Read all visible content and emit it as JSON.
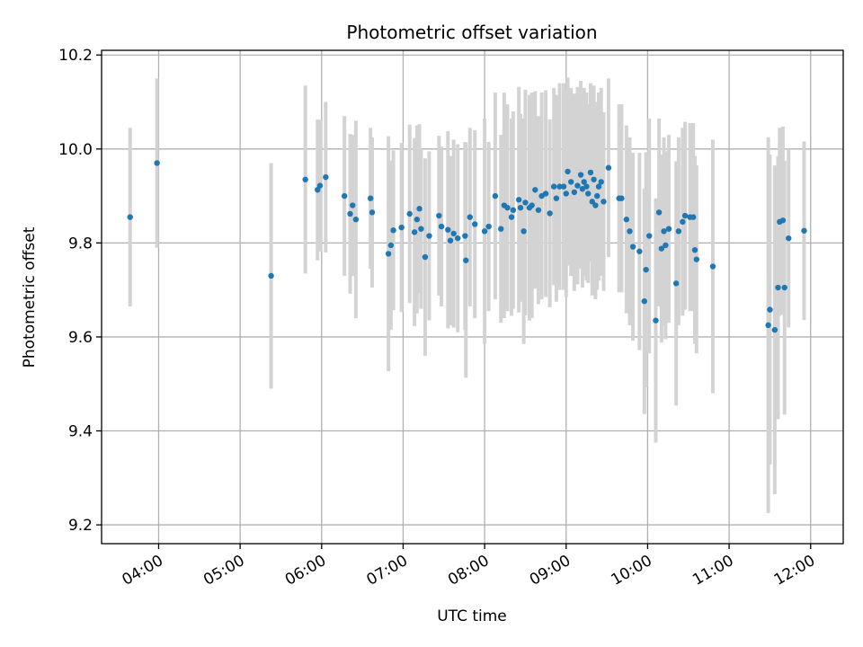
{
  "chart_data": {
    "type": "scatter",
    "title": "Photometric offset variation",
    "xlabel": "UTC time",
    "ylabel": "Photometric offset",
    "x_unit": "hours UTC",
    "xlim": [
      3.3,
      12.4
    ],
    "ylim": [
      9.16,
      10.21
    ],
    "grid": true,
    "x_ticks": [
      {
        "value": 4.0,
        "label": "04:00"
      },
      {
        "value": 5.0,
        "label": "05:00"
      },
      {
        "value": 6.0,
        "label": "06:00"
      },
      {
        "value": 7.0,
        "label": "07:00"
      },
      {
        "value": 8.0,
        "label": "08:00"
      },
      {
        "value": 9.0,
        "label": "09:00"
      },
      {
        "value": 10.0,
        "label": "10:00"
      },
      {
        "value": 11.0,
        "label": "11:00"
      },
      {
        "value": 12.0,
        "label": "12:00"
      }
    ],
    "y_ticks": [
      {
        "value": 9.2,
        "label": "9.2"
      },
      {
        "value": 9.4,
        "label": "9.4"
      },
      {
        "value": 9.6,
        "label": "9.6"
      },
      {
        "value": 9.8,
        "label": "9.8"
      },
      {
        "value": 10.0,
        "label": "10.0"
      },
      {
        "value": 10.2,
        "label": "10.2"
      }
    ],
    "colors": {
      "point": "#1f77b4",
      "errorbar": "#d3d3d3",
      "grid": "#b0b0b0"
    },
    "series": [
      {
        "points": [
          [
            3.65,
            9.855,
            0.19
          ],
          [
            3.98,
            9.97,
            0.18
          ],
          [
            5.38,
            9.73,
            0.24
          ],
          [
            5.8,
            9.935,
            0.2
          ],
          [
            5.95,
            9.913,
            0.15
          ],
          [
            5.98,
            9.922,
            0.14
          ],
          [
            6.05,
            9.94,
            0.16
          ],
          [
            6.28,
            9.9,
            0.17
          ],
          [
            6.35,
            9.862,
            0.17
          ],
          [
            6.38,
            9.88,
            0.15
          ],
          [
            6.42,
            9.85,
            0.21
          ],
          [
            6.6,
            9.895,
            0.15
          ],
          [
            6.62,
            9.865,
            0.16
          ],
          [
            6.82,
            9.777,
            0.25
          ],
          [
            6.85,
            9.795,
            0.18
          ],
          [
            6.88,
            9.827,
            0.17
          ],
          [
            6.98,
            9.833,
            0.18
          ],
          [
            7.08,
            9.862,
            0.19
          ],
          [
            7.14,
            9.823,
            0.2
          ],
          [
            7.17,
            9.85,
            0.2
          ],
          [
            7.2,
            9.873,
            0.18
          ],
          [
            7.22,
            9.83,
            0.17
          ],
          [
            7.27,
            9.77,
            0.21
          ],
          [
            7.32,
            9.815,
            0.18
          ],
          [
            7.44,
            9.858,
            0.17
          ],
          [
            7.47,
            9.835,
            0.17
          ],
          [
            7.55,
            9.828,
            0.21
          ],
          [
            7.58,
            9.805,
            0.18
          ],
          [
            7.62,
            9.82,
            0.2
          ],
          [
            7.67,
            9.81,
            0.2
          ],
          [
            7.76,
            9.815,
            0.2
          ],
          [
            7.77,
            9.763,
            0.25
          ],
          [
            7.82,
            9.855,
            0.19
          ],
          [
            7.88,
            9.84,
            0.2
          ],
          [
            8.0,
            9.825,
            0.24
          ],
          [
            8.05,
            9.835,
            0.18
          ],
          [
            8.13,
            9.9,
            0.22
          ],
          [
            8.2,
            9.83,
            0.2
          ],
          [
            8.24,
            9.88,
            0.24
          ],
          [
            8.28,
            9.875,
            0.22
          ],
          [
            8.33,
            9.855,
            0.21
          ],
          [
            8.35,
            9.87,
            0.21
          ],
          [
            8.42,
            9.892,
            0.24
          ],
          [
            8.44,
            9.875,
            0.2
          ],
          [
            8.48,
            9.825,
            0.24
          ],
          [
            8.5,
            9.886,
            0.24
          ],
          [
            8.55,
            9.875,
            0.24
          ],
          [
            8.58,
            9.88,
            0.24
          ],
          [
            8.62,
            9.913,
            0.21
          ],
          [
            8.66,
            9.87,
            0.2
          ],
          [
            8.7,
            9.9,
            0.22
          ],
          [
            8.75,
            9.905,
            0.22
          ],
          [
            8.8,
            9.863,
            0.2
          ],
          [
            8.85,
            9.92,
            0.21
          ],
          [
            8.88,
            9.895,
            0.22
          ],
          [
            8.92,
            9.92,
            0.22
          ],
          [
            8.97,
            9.92,
            0.22
          ],
          [
            9.0,
            9.905,
            0.22
          ],
          [
            9.02,
            9.952,
            0.2
          ],
          [
            9.06,
            9.93,
            0.2
          ],
          [
            9.1,
            9.908,
            0.21
          ],
          [
            9.14,
            9.922,
            0.21
          ],
          [
            9.18,
            9.945,
            0.2
          ],
          [
            9.2,
            9.915,
            0.21
          ],
          [
            9.22,
            9.93,
            0.2
          ],
          [
            9.25,
            9.92,
            0.2
          ],
          [
            9.27,
            9.905,
            0.19
          ],
          [
            9.3,
            9.95,
            0.19
          ],
          [
            9.32,
            9.888,
            0.2
          ],
          [
            9.34,
            9.935,
            0.2
          ],
          [
            9.36,
            9.88,
            0.2
          ],
          [
            9.38,
            9.9,
            0.2
          ],
          [
            9.4,
            9.92,
            0.2
          ],
          [
            9.43,
            9.93,
            0.2
          ],
          [
            9.46,
            9.888,
            0.19
          ],
          [
            9.52,
            9.96,
            0.19
          ],
          [
            9.65,
            9.895,
            0.2
          ],
          [
            9.68,
            9.895,
            0.2
          ],
          [
            9.74,
            9.85,
            0.2
          ],
          [
            9.78,
            9.825,
            0.2
          ],
          [
            9.82,
            9.792,
            0.2
          ],
          [
            9.9,
            9.782,
            0.21
          ],
          [
            9.96,
            9.676,
            0.24
          ],
          [
            9.98,
            9.743,
            0.25
          ],
          [
            10.02,
            9.815,
            0.25
          ],
          [
            10.1,
            9.635,
            0.26
          ],
          [
            10.14,
            9.865,
            0.2
          ],
          [
            10.17,
            9.788,
            0.2
          ],
          [
            10.2,
            9.825,
            0.2
          ],
          [
            10.22,
            9.795,
            0.2
          ],
          [
            10.26,
            9.83,
            0.2
          ],
          [
            10.35,
            9.714,
            0.26
          ],
          [
            10.38,
            9.825,
            0.2
          ],
          [
            10.43,
            9.845,
            0.2
          ],
          [
            10.46,
            9.858,
            0.2
          ],
          [
            10.52,
            9.855,
            0.2
          ],
          [
            10.56,
            9.855,
            0.2
          ],
          [
            10.58,
            9.785,
            0.2
          ],
          [
            10.6,
            9.765,
            0.2
          ],
          [
            10.8,
            9.75,
            0.27
          ],
          [
            11.48,
            9.625,
            0.4
          ],
          [
            11.5,
            9.658,
            0.33
          ],
          [
            11.56,
            9.615,
            0.35
          ],
          [
            11.6,
            9.705,
            0.28
          ],
          [
            11.62,
            9.845,
            0.2
          ],
          [
            11.66,
            9.848,
            0.2
          ],
          [
            11.68,
            9.705,
            0.27
          ],
          [
            11.73,
            9.81,
            0.19
          ],
          [
            11.92,
            9.826,
            0.19
          ]
        ]
      }
    ]
  }
}
